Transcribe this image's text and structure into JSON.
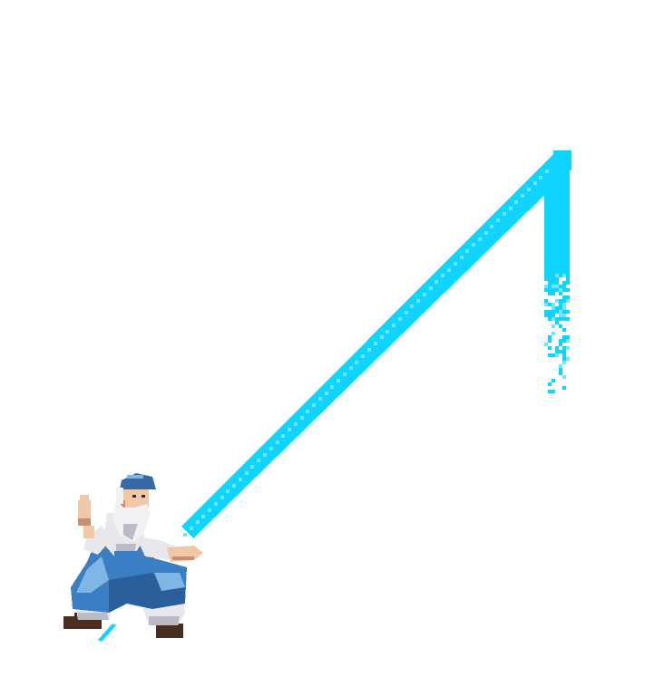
{
  "scene": {
    "background": "#ffffff",
    "beam_color": "#0fd4ff",
    "beam_color_light": "#6fe6ff",
    "elements": [
      {
        "name": "lightning-beam",
        "kind": "effect"
      },
      {
        "name": "beam-sparkle-particles",
        "kind": "effect"
      },
      {
        "name": "old-master-sprite",
        "kind": "character"
      }
    ]
  },
  "character": {
    "robe_color": "#3a7fc4",
    "robe_dark": "#2a5f9c",
    "robe_light": "#7fb6e6",
    "cloth_white": "#e8e8ec",
    "cloth_shadow": "#b9bcc6",
    "skin": "#f0c8a8",
    "skin_shadow": "#c98f6e",
    "beard": "#f2f2f2",
    "sandal": "#4a2e1f",
    "cap": "#3569a8"
  }
}
